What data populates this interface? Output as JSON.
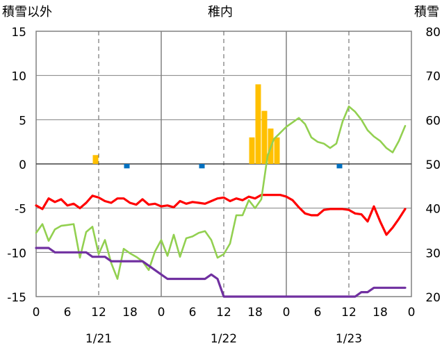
{
  "chart_data": {
    "type": "line",
    "title": "稚内",
    "y_left_label": "積雪以外",
    "y_right_label": "積雪",
    "y_left_range": [
      -15,
      15
    ],
    "y_left_ticks": [
      "15",
      "10",
      "5",
      "0",
      "-5",
      "-10",
      "-15"
    ],
    "y_right_range": [
      20,
      80
    ],
    "y_right_ticks": [
      "80",
      "70",
      "60",
      "50",
      "40",
      "30",
      "20"
    ],
    "x_range": [
      0,
      60
    ],
    "x_tick_labels": [
      "0",
      "6",
      "12",
      "18",
      "0",
      "6",
      "12",
      "18",
      "0",
      "6",
      "12",
      "18",
      "0"
    ],
    "dates": [
      "1/21",
      "1/22",
      "1/23"
    ],
    "colors": {
      "temperature": "#ff0000",
      "dewpoint_line": "#92d050",
      "snow_depth": "#7030a0",
      "snowfall_bars": "#ffc000",
      "negative_bars": "#0070c0",
      "axis_frame": "#808080",
      "grid_dash": "#595959"
    },
    "series": [
      {
        "key": "temperature",
        "axis": "left",
        "x": [
          0,
          1,
          2,
          3,
          4,
          5,
          6,
          7,
          8,
          9,
          10,
          11,
          12,
          13,
          14,
          15,
          16,
          17,
          18,
          19,
          20,
          21,
          22,
          23,
          24,
          25,
          26,
          27,
          28,
          29,
          30,
          31,
          32,
          33,
          34,
          35,
          36,
          37,
          38,
          39,
          40,
          41,
          42,
          43,
          44,
          45,
          46,
          47,
          48,
          49,
          50,
          51,
          52,
          53,
          54,
          55,
          56,
          57,
          58,
          59
        ],
        "y": [
          -4.7,
          -5.1,
          -3.9,
          -4.3,
          -4.0,
          -4.7,
          -4.5,
          -5.0,
          -4.4,
          -3.6,
          -3.8,
          -4.2,
          -4.4,
          -3.9,
          -3.9,
          -4.4,
          -4.6,
          -4.0,
          -4.6,
          -4.5,
          -4.8,
          -4.7,
          -4.9,
          -4.2,
          -4.5,
          -4.3,
          -4.4,
          -4.5,
          -4.2,
          -3.9,
          -3.8,
          -4.2,
          -3.9,
          -4.1,
          -3.7,
          -3.9,
          -3.5,
          -3.5,
          -3.5,
          -3.5,
          -3.7,
          -4.1,
          -4.9,
          -5.6,
          -5.8,
          -5.8,
          -5.2,
          -5.1,
          -5.1,
          -5.1,
          -5.2,
          -5.6,
          -5.7,
          -6.5,
          -4.8,
          -6.5,
          -8.0,
          -7.2,
          -6.2,
          -5.1
        ]
      },
      {
        "key": "green_line",
        "axis": "left",
        "x": [
          0,
          1,
          2,
          3,
          4,
          5,
          6,
          7,
          8,
          9,
          10,
          11,
          12,
          13,
          14,
          15,
          16,
          17,
          18,
          19,
          20,
          21,
          22,
          23,
          24,
          25,
          26,
          27,
          28,
          29,
          30,
          31,
          32,
          33,
          34,
          35,
          36,
          37,
          38,
          39,
          40,
          41,
          42,
          43,
          44,
          45,
          46,
          47,
          48,
          49,
          50,
          51,
          52,
          53,
          54,
          55,
          56,
          57,
          58,
          59
        ],
        "y": [
          -7.8,
          -6.8,
          -8.7,
          -7.4,
          -7.0,
          -6.9,
          -6.8,
          -10.6,
          -7.7,
          -7.1,
          -10.2,
          -8.6,
          -11.2,
          -13.0,
          -9.6,
          -10.1,
          -10.5,
          -11.0,
          -12.0,
          -9.9,
          -8.6,
          -10.4,
          -8.0,
          -10.5,
          -8.4,
          -8.2,
          -7.8,
          -7.6,
          -8.6,
          -10.6,
          -10.2,
          -9.0,
          -5.8,
          -5.8,
          -4.1,
          -5.0,
          -4.0,
          0.9,
          2.8,
          3.5,
          4.2,
          4.7,
          5.2,
          4.5,
          3.0,
          2.5,
          2.3,
          1.8,
          2.3,
          4.8,
          6.5,
          5.9,
          5.0,
          3.8,
          3.1,
          2.6,
          1.8,
          1.3,
          2.6,
          4.3
        ]
      },
      {
        "key": "snow_depth",
        "axis": "right",
        "x": [
          0,
          1,
          2,
          3,
          4,
          5,
          6,
          7,
          8,
          9,
          10,
          11,
          12,
          13,
          14,
          15,
          16,
          17,
          18,
          19,
          20,
          21,
          22,
          23,
          24,
          25,
          26,
          27,
          28,
          29,
          30,
          31,
          32,
          33,
          34,
          35,
          36,
          37,
          38,
          39,
          40,
          41,
          42,
          43,
          44,
          45,
          46,
          47,
          48,
          49,
          50,
          51,
          52,
          53,
          54,
          55,
          56,
          57,
          58,
          59
        ],
        "y": [
          31,
          31,
          31,
          30,
          30,
          30,
          30,
          30,
          30,
          29,
          29,
          29,
          28,
          28,
          28,
          28,
          28,
          28,
          27,
          26,
          25,
          24,
          24,
          24,
          24,
          24,
          24,
          24,
          25,
          24,
          20,
          20,
          20,
          20,
          20,
          20,
          20,
          20,
          20,
          20,
          20,
          20,
          20,
          20,
          20,
          20,
          20,
          20,
          20,
          20,
          20,
          20,
          21,
          21,
          22,
          22,
          22,
          22,
          22,
          22
        ]
      }
    ],
    "bars": [
      {
        "x": 9.5,
        "value": 1.0,
        "axis": "left"
      },
      {
        "x": 34.5,
        "value": 3.0,
        "axis": "left"
      },
      {
        "x": 35.5,
        "value": 9.0,
        "axis": "left"
      },
      {
        "x": 36.5,
        "value": 6.0,
        "axis": "left"
      },
      {
        "x": 37.5,
        "value": 4.0,
        "axis": "left"
      },
      {
        "x": 38.5,
        "value": 3.0,
        "axis": "left"
      },
      {
        "x": 14.5,
        "value": -0.5,
        "axis": "left"
      },
      {
        "x": 26.5,
        "value": -0.5,
        "axis": "left"
      },
      {
        "x": 48.5,
        "value": -0.5,
        "axis": "left"
      }
    ]
  }
}
